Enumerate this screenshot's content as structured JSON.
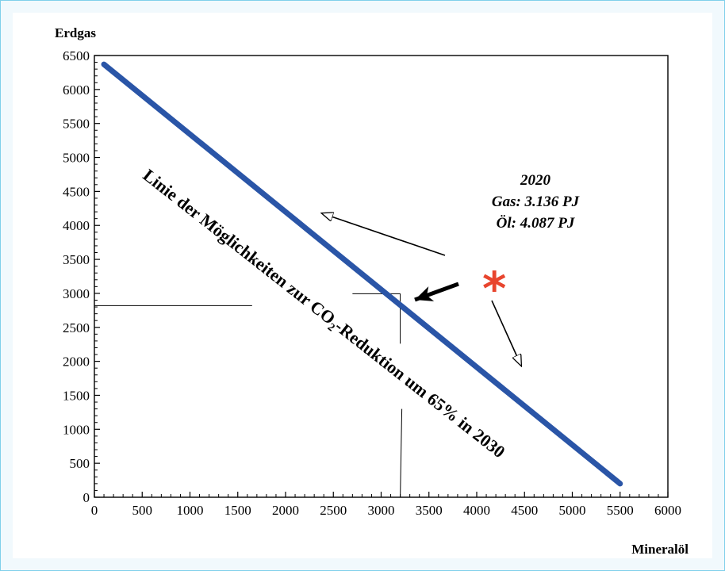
{
  "chart_data": {
    "type": "line",
    "ylabel": "Erdgas",
    "xlabel": "Mineralöl",
    "xlim": [
      0,
      6000
    ],
    "ylim": [
      0,
      6500
    ],
    "xticks": [
      0,
      500,
      1000,
      1500,
      2000,
      2500,
      3000,
      3500,
      4000,
      4500,
      5000,
      5500,
      6000
    ],
    "yticks": [
      0,
      500,
      1000,
      1500,
      2000,
      2500,
      3000,
      3500,
      4000,
      4500,
      5000,
      5500,
      6000,
      6500
    ],
    "grid": false,
    "series": [
      {
        "name": "",
        "color": "#2a55a7",
        "points": [
          [
            100,
            6370
          ],
          [
            5500,
            200
          ]
        ]
      }
    ],
    "line_label": {
      "pre": "Linie der Möglichkeiten zur CO",
      "sub": "2",
      "post": "-Reduktion um 65% in 2030"
    },
    "marker": {
      "symbol": "*",
      "color": "#e8452e",
      "x": 4087,
      "y": 3136
    },
    "annotation": {
      "year": "2020",
      "gas": "Gas: 3.136 PJ",
      "oil": "Öl: 4.087 PJ"
    },
    "reference_point": {
      "x": 3200,
      "y": 2820
    }
  }
}
